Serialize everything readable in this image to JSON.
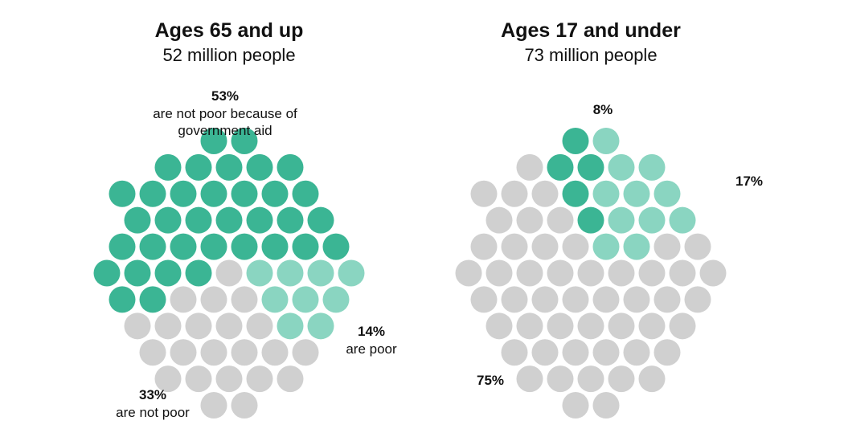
{
  "chart_data": [
    {
      "type": "dot-cluster",
      "title": "Ages 65 and up",
      "subtitle": "52 million people",
      "values": [
        53,
        14,
        33
      ],
      "value_labels": [
        "53%",
        "14%",
        "33%"
      ],
      "labels": [
        "are not poor because of government aid",
        "are poor",
        "are not poor"
      ],
      "colors": [
        "#3bb594",
        "#8ad5c1",
        "#d0d0d0"
      ]
    },
    {
      "type": "dot-cluster",
      "title": "Ages 17 and under",
      "subtitle": "73 million people",
      "values": [
        8,
        17,
        75
      ],
      "value_labels": [
        "8%",
        "17%",
        "75%"
      ],
      "colors": [
        "#3bb594",
        "#8ad5c1",
        "#d0d0d0"
      ]
    }
  ]
}
